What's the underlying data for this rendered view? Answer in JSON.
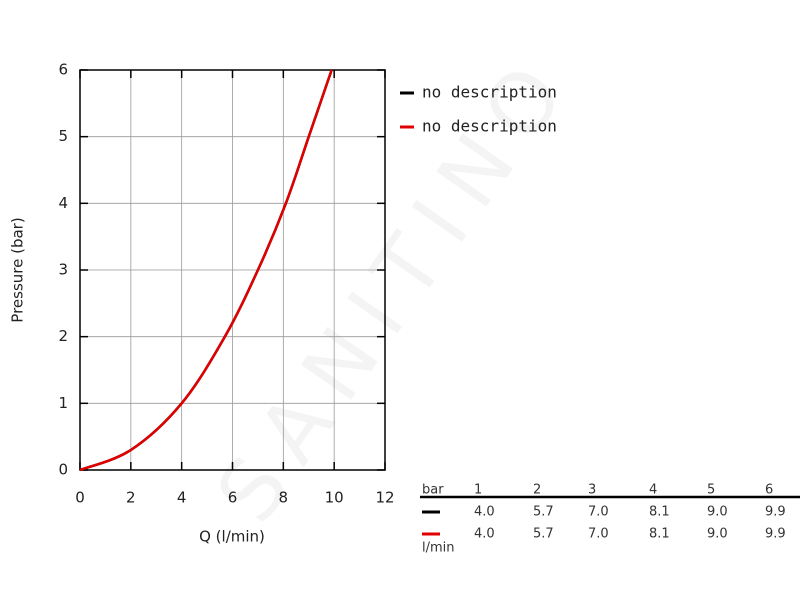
{
  "chart_data": {
    "type": "line",
    "x_label": "Q (l/min)",
    "y_label": "Pressure (bar)",
    "x": [
      0,
      2,
      4,
      5.7,
      7,
      8.1,
      9,
      9.9
    ],
    "series": [
      {
        "name": "no description",
        "color": "#000000",
        "values": [
          0,
          0.3,
          1,
          2,
          3,
          4,
          5,
          6
        ]
      },
      {
        "name": "no description",
        "color": "#e00000",
        "values": [
          0,
          0.3,
          1,
          2,
          3,
          4,
          5,
          6
        ]
      }
    ],
    "xlim": [
      0,
      12
    ],
    "xticks": [
      0,
      2,
      4,
      6,
      8,
      10,
      12
    ],
    "ylim": [
      0,
      6
    ],
    "yticks": [
      0,
      1,
      2,
      3,
      4,
      5,
      6
    ],
    "grid": true,
    "legend": "right"
  },
  "table": {
    "header": [
      "bar",
      "1",
      "2",
      "3",
      "4",
      "5",
      "6"
    ],
    "rows": [
      [
        "4.0",
        "5.7",
        "7.0",
        "8.1",
        "9.0",
        "9.9"
      ],
      [
        "4.0",
        "5.7",
        "7.0",
        "8.1",
        "9.0",
        "9.9"
      ]
    ],
    "unit": "l/min"
  },
  "watermark": "SANITINO"
}
